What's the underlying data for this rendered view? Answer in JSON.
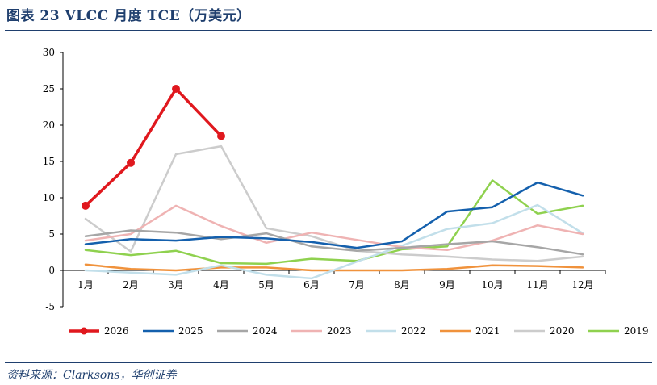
{
  "header": {
    "title": "图表 23   VLCC 月度 TCE（万美元）"
  },
  "footer": {
    "source": "资料来源：Clarksons，华创证券"
  },
  "chart_data": {
    "type": "line",
    "title": "VLCC 月度 TCE（万美元）",
    "xlabel": "",
    "ylabel": "",
    "categories": [
      "1月",
      "2月",
      "3月",
      "4月",
      "5月",
      "6月",
      "7月",
      "8月",
      "9月",
      "10月",
      "11月",
      "12月"
    ],
    "ylim": [
      -5,
      30
    ],
    "yticks": [
      -5,
      0,
      5,
      10,
      15,
      20,
      25,
      30
    ],
    "grid": false,
    "legend": "bottom",
    "series": [
      {
        "name": "2026",
        "color": "#e0181e",
        "markers": true,
        "values": [
          8.9,
          14.8,
          25.0,
          18.5,
          null,
          null,
          null,
          null,
          null,
          null,
          null,
          null
        ]
      },
      {
        "name": "2025",
        "color": "#1460ad",
        "values": [
          3.6,
          4.3,
          4.1,
          4.6,
          4.4,
          3.9,
          3.1,
          4.0,
          8.1,
          8.7,
          12.1,
          10.3
        ]
      },
      {
        "name": "2024",
        "color": "#a6a6a6",
        "values": [
          4.7,
          5.5,
          5.2,
          4.3,
          5.1,
          3.3,
          2.7,
          3.1,
          3.6,
          4.0,
          3.2,
          2.2
        ]
      },
      {
        "name": "2023",
        "color": "#efb3b3",
        "values": [
          4.1,
          5.0,
          8.9,
          6.1,
          3.8,
          5.2,
          4.2,
          3.2,
          2.8,
          4.1,
          6.2,
          5.0
        ]
      },
      {
        "name": "2022",
        "color": "#c2dfea",
        "values": [
          0.0,
          -0.3,
          -0.6,
          0.7,
          -0.6,
          -1.1,
          1.2,
          3.4,
          5.7,
          6.5,
          9.0,
          5.1
        ]
      },
      {
        "name": "2021",
        "color": "#f0923c",
        "values": [
          0.8,
          0.2,
          0.0,
          0.4,
          0.4,
          0.0,
          0.0,
          0.0,
          0.2,
          0.7,
          0.6,
          0.4
        ]
      },
      {
        "name": "2020",
        "color": "#cccccc",
        "values": [
          7.1,
          2.6,
          16.0,
          17.1,
          5.8,
          4.7,
          2.7,
          2.2,
          1.9,
          1.5,
          1.3,
          1.9
        ]
      },
      {
        "name": "2019",
        "color": "#8fd14f",
        "values": [
          2.8,
          2.1,
          2.7,
          1.0,
          0.9,
          1.6,
          1.3,
          2.9,
          3.3,
          12.4,
          7.8,
          8.9
        ]
      }
    ]
  }
}
